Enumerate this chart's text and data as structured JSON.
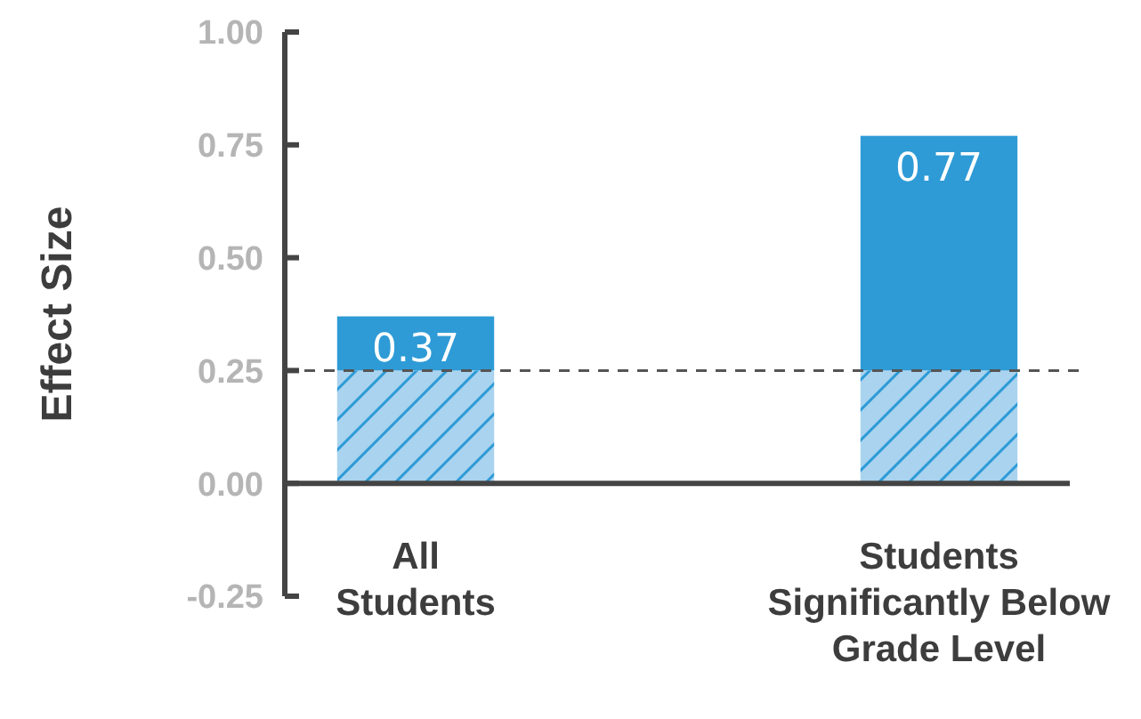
{
  "chart_data": {
    "type": "bar",
    "ylabel": "Effect Size",
    "categories": [
      "All\nStudents",
      "Students\nSignificantly Below\nGrade Level"
    ],
    "stacked": true,
    "series": [
      {
        "color": "#a9d3ef",
        "values": [
          0.25,
          0.25
        ]
      },
      {
        "color": "#2e9bd6",
        "values": [
          0.12,
          0.52
        ]
      }
    ],
    "totals": [
      "0.37",
      "0.77"
    ],
    "ylim": [
      -0.25,
      1.0
    ],
    "yticks": [
      {
        "value": -0.25,
        "label": "-0.25"
      },
      {
        "value": 0,
        "label": "0.00"
      },
      {
        "value": 0.25,
        "label": "0.25"
      },
      {
        "value": 0.5,
        "label": "0.50"
      },
      {
        "value": 0.75,
        "label": "0.75"
      },
      {
        "value": 1,
        "label": "1.00"
      }
    ],
    "ref_lines": [
      {
        "axis": "y",
        "value": 0.25,
        "line_style": "dashed",
        "color": "#555555"
      }
    ],
    "grid": false
  }
}
